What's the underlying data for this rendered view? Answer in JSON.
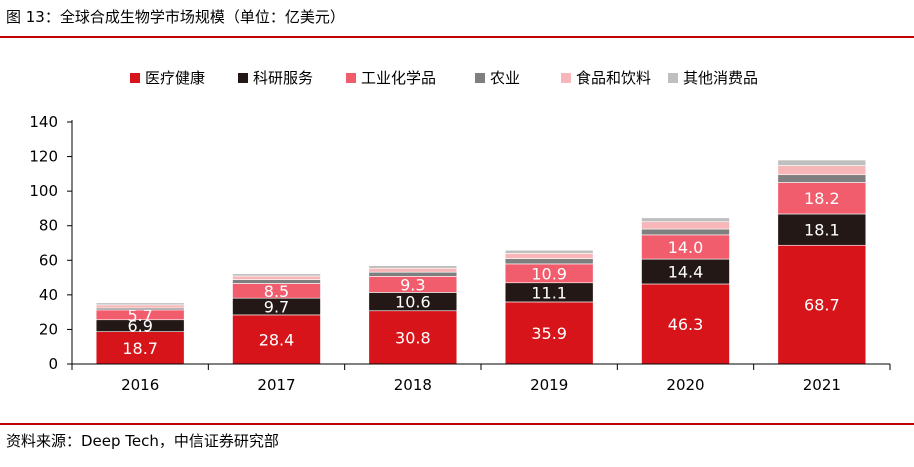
{
  "title": "图 13：全球合成生物学市场规模（单位：亿美元）",
  "source": "资料来源：Deep Tech，中信证券研究部",
  "chart_data": {
    "type": "bar",
    "stacked": true,
    "categories": [
      "2016",
      "2017",
      "2018",
      "2019",
      "2020",
      "2021"
    ],
    "ylim": [
      0,
      140
    ],
    "yticks": [
      0,
      20,
      40,
      60,
      80,
      100,
      120,
      140
    ],
    "legend_position": "top",
    "series": [
      {
        "name": "医疗健康",
        "color": "#d7141a",
        "values": [
          18.7,
          28.4,
          30.8,
          35.9,
          46.3,
          68.7
        ],
        "labels": [
          "18.7",
          "28.4",
          "30.8",
          "35.9",
          "46.3",
          "68.7"
        ]
      },
      {
        "name": "科研服务",
        "color": "#231815",
        "values": [
          6.9,
          9.7,
          10.6,
          11.1,
          14.4,
          18.1
        ],
        "labels": [
          "6.9",
          "9.7",
          "10.6",
          "11.1",
          "14.4",
          "18.1"
        ]
      },
      {
        "name": "工业化学品",
        "color": "#f25d6e",
        "values": [
          5.7,
          8.5,
          9.3,
          10.9,
          14.0,
          18.2
        ],
        "labels": [
          "5.7",
          "8.5",
          "9.3",
          "10.9",
          "14.0",
          "18.2"
        ]
      },
      {
        "name": "农业",
        "color": "#7f7f7f",
        "values": [
          1.1,
          2.2,
          2.4,
          3.1,
          3.4,
          4.5
        ],
        "labels": []
      },
      {
        "name": "食品和饮料",
        "color": "#f7b7b9",
        "values": [
          1.8,
          2.1,
          2.3,
          3.0,
          4.2,
          5.3
        ],
        "labels": []
      },
      {
        "name": "其他消费品",
        "color": "#bfbfbf",
        "values": [
          1.2,
          1.3,
          1.5,
          1.8,
          2.3,
          3.2
        ],
        "labels": []
      }
    ]
  }
}
